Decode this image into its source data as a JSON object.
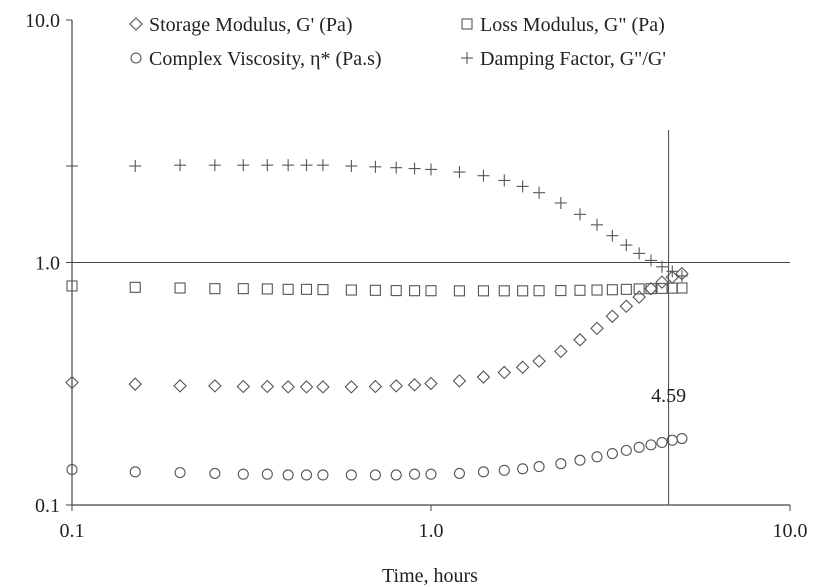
{
  "chart_data": {
    "type": "scatter",
    "title": "",
    "xlabel": "Time, hours",
    "ylabel": "",
    "xscale": "log",
    "yscale": "log",
    "xlim": [
      0.1,
      10.0
    ],
    "ylim": [
      0.1,
      10.0
    ],
    "x_ticks": [
      "0.1",
      "1.0",
      "10.0"
    ],
    "y_ticks": [
      "0.1",
      "1.0",
      "10.0"
    ],
    "grid": false,
    "legend_position": "top",
    "reference_lines": [
      {
        "orientation": "horizontal",
        "value": 1.0
      },
      {
        "orientation": "vertical",
        "value": 4.59,
        "label": "4.59"
      }
    ],
    "series": [
      {
        "name": "Storage Modulus, G' (Pa)",
        "marker": "diamond",
        "x": [
          0.1,
          0.15,
          0.2,
          0.25,
          0.3,
          0.35,
          0.4,
          0.45,
          0.5,
          0.6,
          0.7,
          0.8,
          0.9,
          1.0,
          1.2,
          1.4,
          1.6,
          1.8,
          2.0,
          2.3,
          2.6,
          2.9,
          3.2,
          3.5,
          3.8,
          4.1,
          4.4,
          4.7,
          5.0
        ],
        "y": [
          0.32,
          0.315,
          0.31,
          0.31,
          0.308,
          0.308,
          0.307,
          0.307,
          0.307,
          0.307,
          0.308,
          0.31,
          0.313,
          0.317,
          0.325,
          0.337,
          0.352,
          0.37,
          0.392,
          0.43,
          0.48,
          0.535,
          0.6,
          0.66,
          0.72,
          0.78,
          0.83,
          0.87,
          0.9
        ]
      },
      {
        "name": "Loss Modulus, G\" (Pa)",
        "marker": "square",
        "x": [
          0.1,
          0.15,
          0.2,
          0.25,
          0.3,
          0.35,
          0.4,
          0.45,
          0.5,
          0.6,
          0.7,
          0.8,
          0.9,
          1.0,
          1.2,
          1.4,
          1.6,
          1.8,
          2.0,
          2.3,
          2.6,
          2.9,
          3.2,
          3.5,
          3.8,
          4.1,
          4.4,
          4.7,
          5.0
        ],
        "y": [
          0.8,
          0.79,
          0.785,
          0.78,
          0.78,
          0.778,
          0.775,
          0.775,
          0.773,
          0.77,
          0.768,
          0.766,
          0.765,
          0.765,
          0.764,
          0.764,
          0.764,
          0.764,
          0.765,
          0.766,
          0.768,
          0.77,
          0.772,
          0.775,
          0.778,
          0.78,
          0.782,
          0.784,
          0.785
        ]
      },
      {
        "name": "Complex Viscosity, η* (Pa.s)",
        "marker": "circle",
        "x": [
          0.1,
          0.15,
          0.2,
          0.25,
          0.3,
          0.35,
          0.4,
          0.45,
          0.5,
          0.6,
          0.7,
          0.8,
          0.9,
          1.0,
          1.2,
          1.4,
          1.6,
          1.8,
          2.0,
          2.3,
          2.6,
          2.9,
          3.2,
          3.5,
          3.8,
          4.1,
          4.4,
          4.7,
          5.0
        ],
        "y": [
          0.14,
          0.137,
          0.136,
          0.135,
          0.134,
          0.134,
          0.133,
          0.133,
          0.133,
          0.133,
          0.133,
          0.133,
          0.134,
          0.134,
          0.135,
          0.137,
          0.139,
          0.141,
          0.144,
          0.148,
          0.153,
          0.158,
          0.163,
          0.168,
          0.173,
          0.177,
          0.181,
          0.185,
          0.188
        ]
      },
      {
        "name": "Damping Factor, G\"/G'",
        "marker": "plus",
        "x": [
          0.1,
          0.15,
          0.2,
          0.25,
          0.3,
          0.35,
          0.4,
          0.45,
          0.5,
          0.6,
          0.7,
          0.8,
          0.9,
          1.0,
          1.2,
          1.4,
          1.6,
          1.8,
          2.0,
          2.3,
          2.6,
          2.9,
          3.2,
          3.5,
          3.8,
          4.1,
          4.4,
          4.7,
          5.0
        ],
        "y": [
          2.5,
          2.5,
          2.52,
          2.52,
          2.52,
          2.52,
          2.52,
          2.52,
          2.52,
          2.5,
          2.48,
          2.46,
          2.44,
          2.42,
          2.36,
          2.28,
          2.18,
          2.06,
          1.94,
          1.76,
          1.58,
          1.43,
          1.29,
          1.18,
          1.09,
          1.02,
          0.96,
          0.92,
          0.88
        ]
      }
    ]
  }
}
